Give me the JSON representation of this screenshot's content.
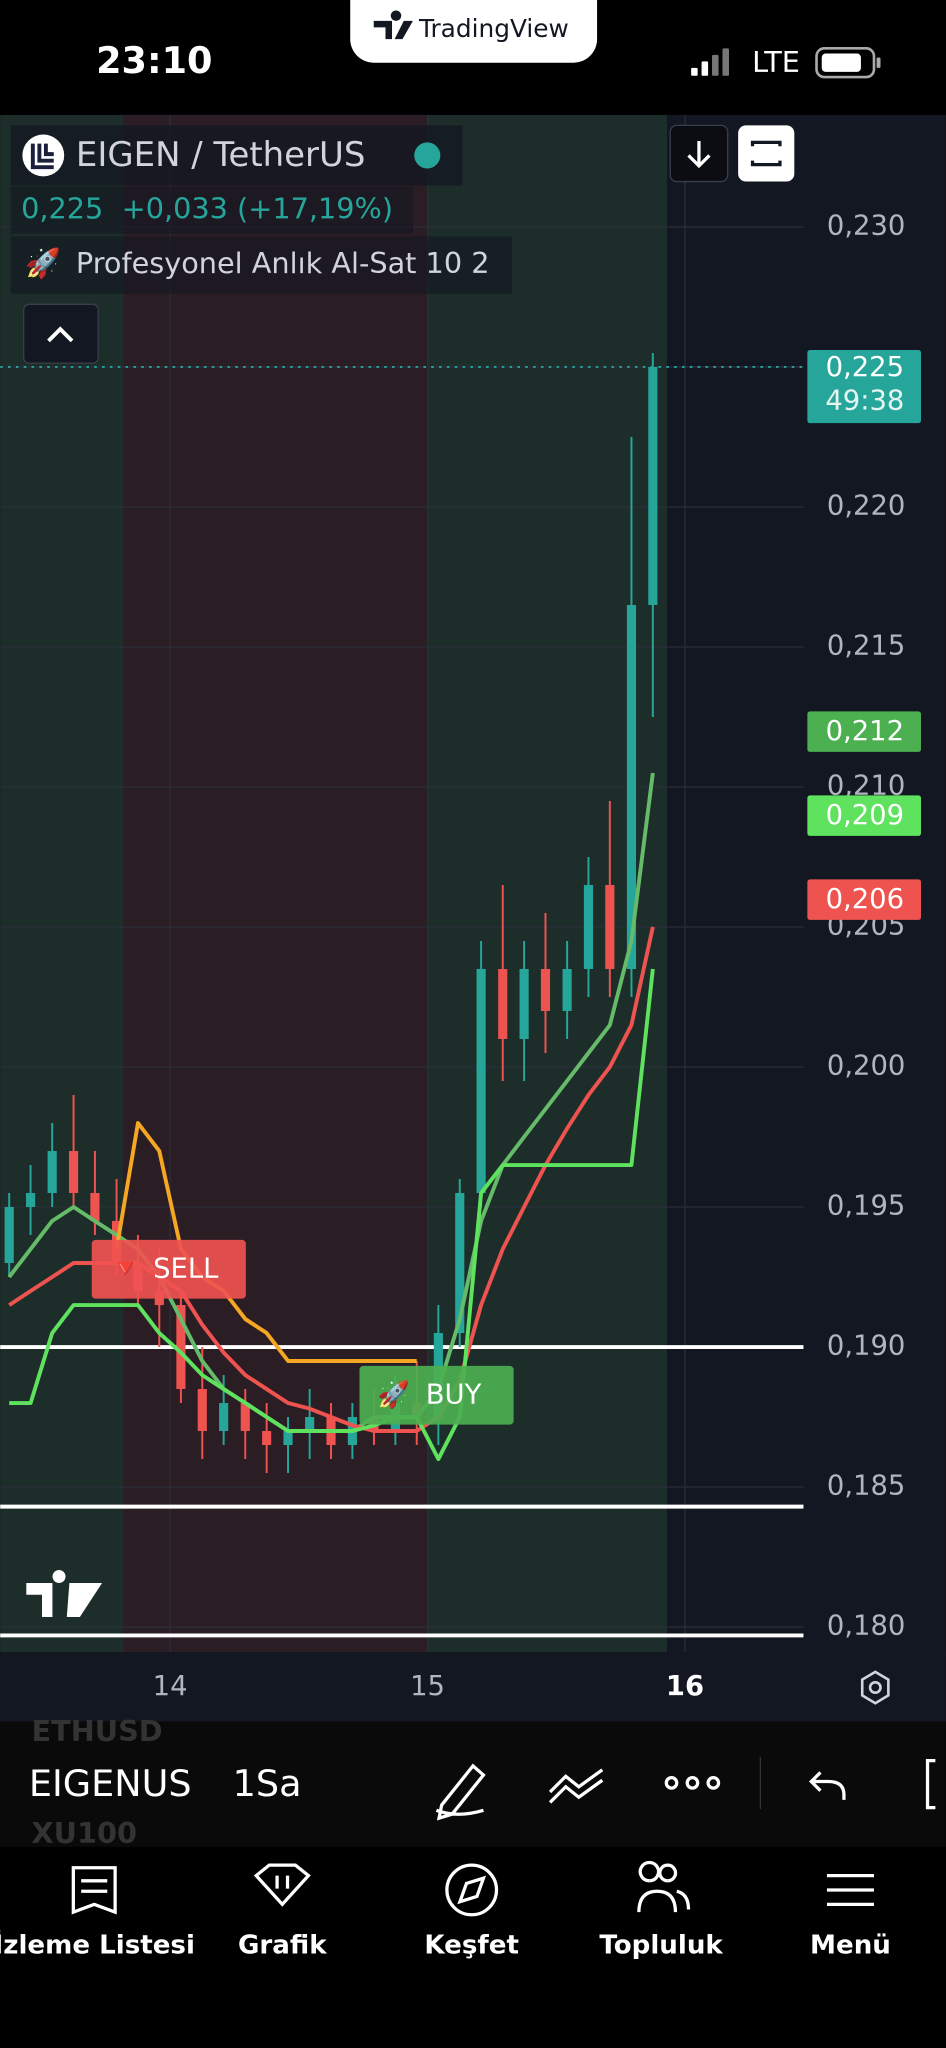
{
  "status_bar": {
    "time": "23:10",
    "network": "LTE",
    "brand": "TradingView"
  },
  "header": {
    "symbol": "EIGEN / TetherUS",
    "price": "0,225",
    "change": "+0,033 (+17,19%)",
    "indicator_icon": "🚀",
    "indicator": "Profesyonel Anlık Al-Sat 10 2"
  },
  "chart_data": {
    "type": "candlestick",
    "x": [
      13.375,
      13.458,
      13.542,
      13.625,
      13.708,
      13.792,
      13.875,
      13.958,
      14.042,
      14.125,
      14.208,
      14.292,
      14.375,
      14.458,
      14.542,
      14.625,
      14.708,
      14.792,
      14.875,
      14.958,
      15.042,
      15.125,
      15.208,
      15.292,
      15.375,
      15.458,
      15.542,
      15.625,
      15.708,
      15.792,
      15.875
    ],
    "open": [
      0.193,
      0.195,
      0.1955,
      0.197,
      0.1955,
      0.1945,
      0.193,
      0.192,
      0.1915,
      0.1885,
      0.187,
      0.188,
      0.187,
      0.1865,
      0.187,
      0.1875,
      0.1865,
      0.1875,
      0.187,
      0.188,
      0.1875,
      0.1905,
      0.1955,
      0.2035,
      0.201,
      0.2035,
      0.202,
      0.2035,
      0.2065,
      0.2035,
      0.2165
    ],
    "high": [
      0.1955,
      0.1965,
      0.198,
      0.199,
      0.197,
      0.196,
      0.194,
      0.1935,
      0.192,
      0.19,
      0.189,
      0.1885,
      0.188,
      0.1875,
      0.1885,
      0.188,
      0.188,
      0.1885,
      0.189,
      0.1895,
      0.1915,
      0.196,
      0.2045,
      0.2065,
      0.2045,
      0.2055,
      0.2045,
      0.2075,
      0.2095,
      0.2225,
      0.2255
    ],
    "low": [
      0.1925,
      0.194,
      0.195,
      0.195,
      0.194,
      0.1925,
      0.1915,
      0.19,
      0.188,
      0.186,
      0.1865,
      0.186,
      0.1855,
      0.1855,
      0.186,
      0.186,
      0.186,
      0.1865,
      0.1865,
      0.1865,
      0.1865,
      0.19,
      0.195,
      0.1995,
      0.1995,
      0.2005,
      0.201,
      0.2025,
      0.2025,
      0.2025,
      0.2125
    ],
    "close": [
      0.195,
      0.1955,
      0.197,
      0.1955,
      0.1945,
      0.193,
      0.192,
      0.1915,
      0.1885,
      0.187,
      0.188,
      0.187,
      0.1865,
      0.187,
      0.1875,
      0.1865,
      0.1875,
      0.187,
      0.188,
      0.1875,
      0.1905,
      0.1955,
      0.2035,
      0.201,
      0.2035,
      0.202,
      0.2035,
      0.2065,
      0.2035,
      0.2165,
      0.225
    ],
    "up_color": "#26a69a",
    "down_color": "#ef5350",
    "series": [
      {
        "color": "#66bb6a",
        "values": [
          0.1925,
          0.1935,
          0.1945,
          0.195,
          0.1945,
          0.194,
          0.1935,
          0.1925,
          0.191,
          0.1895,
          0.1885,
          0.188,
          0.1875,
          0.187,
          0.187,
          0.187,
          0.187,
          0.1875,
          0.1875,
          0.1875,
          0.1885,
          0.191,
          0.1945,
          0.1965,
          0.1975,
          0.1985,
          0.1995,
          0.2005,
          0.2015,
          0.2045,
          0.2105
        ]
      },
      {
        "color": "#ef5350",
        "values": [
          0.1915,
          0.192,
          0.1925,
          0.193,
          0.193,
          0.193,
          0.193,
          0.1925,
          0.192,
          0.1908,
          0.1898,
          0.189,
          0.1885,
          0.188,
          0.1878,
          0.1875,
          0.1872,
          0.187,
          0.187,
          0.187,
          0.1875,
          0.1888,
          0.1915,
          0.1935,
          0.195,
          0.1965,
          0.1978,
          0.199,
          0.2,
          0.2015,
          0.205
        ]
      },
      {
        "color": "#f5a623",
        "values": [
          null,
          null,
          null,
          null,
          null,
          0.1935,
          0.198,
          0.197,
          0.1935,
          0.1925,
          0.192,
          0.191,
          0.1905,
          0.1895,
          0.1895,
          0.1895,
          0.1895,
          0.1895,
          0.1895,
          0.1895,
          null,
          null,
          null,
          null,
          null,
          null,
          null,
          null,
          null,
          null,
          null
        ]
      },
      {
        "color": "#5fe35f",
        "values": [
          0.188,
          0.188,
          0.1905,
          0.1915,
          0.1915,
          0.1915,
          0.1915,
          0.1905,
          0.1898,
          0.189,
          0.1885,
          0.188,
          0.1875,
          0.187,
          0.187,
          0.187,
          0.187,
          0.1872,
          0.1875,
          0.1875,
          0.186,
          0.1875,
          0.1955,
          0.1965,
          0.1965,
          0.1965,
          0.1965,
          0.1965,
          0.1965,
          0.1965,
          0.2035
        ]
      }
    ],
    "zones": [
      {
        "start": 13.34,
        "end": 13.82,
        "color": "#1d2e2a"
      },
      {
        "start": 13.82,
        "end": 15.0,
        "color": "#2b1d24"
      },
      {
        "start": 15.0,
        "end": 15.93,
        "color": "#1d2e2a"
      }
    ],
    "hlines": [
      0.19,
      0.1843,
      0.1797
    ],
    "signals": [
      {
        "icon": "🔻",
        "label": "SELL",
        "x": 14.0,
        "price": 0.1928,
        "color": "#ef5350"
      },
      {
        "icon": "🚀",
        "label": "BUY",
        "x": 15.04,
        "price": 0.1883,
        "color": "#4caf50"
      }
    ],
    "price_tags": [
      {
        "value": 0.225,
        "label": "0,225",
        "sub": "49:38",
        "color": "#26a69a"
      },
      {
        "value": 0.212,
        "label": "0,212",
        "color": "#4caf50"
      },
      {
        "value": 0.209,
        "label": "0,209",
        "color": "#5fe35f"
      },
      {
        "value": 0.206,
        "label": "0,206",
        "color": "#ef5350"
      }
    ],
    "xlim": [
      13.34,
      16.46
    ],
    "ylim": [
      0.1791,
      0.234
    ],
    "xticks": [
      14,
      15,
      16
    ],
    "yticks": [
      {
        "value": 0.23,
        "label": "0,230"
      },
      {
        "value": 0.225,
        "label": "0,225"
      },
      {
        "value": 0.22,
        "label": "0,220"
      },
      {
        "value": 0.215,
        "label": "0,215"
      },
      {
        "value": 0.21,
        "label": "0,210"
      },
      {
        "value": 0.205,
        "label": "0,205"
      },
      {
        "value": 0.2,
        "label": "0,200"
      },
      {
        "value": 0.195,
        "label": "0,195"
      },
      {
        "value": 0.19,
        "label": "0,190"
      },
      {
        "value": 0.185,
        "label": "0,185"
      },
      {
        "value": 0.18,
        "label": "0,180"
      }
    ],
    "grid": true
  },
  "toolbar": {
    "symbol": "EIGENUS",
    "interval": "1Sa",
    "prev_symbol": "ETHUSD",
    "next_symbol": "XU100"
  },
  "tabs": [
    "İzleme Listesi",
    "Grafik",
    "Keşfet",
    "Topluluk",
    "Menü"
  ]
}
